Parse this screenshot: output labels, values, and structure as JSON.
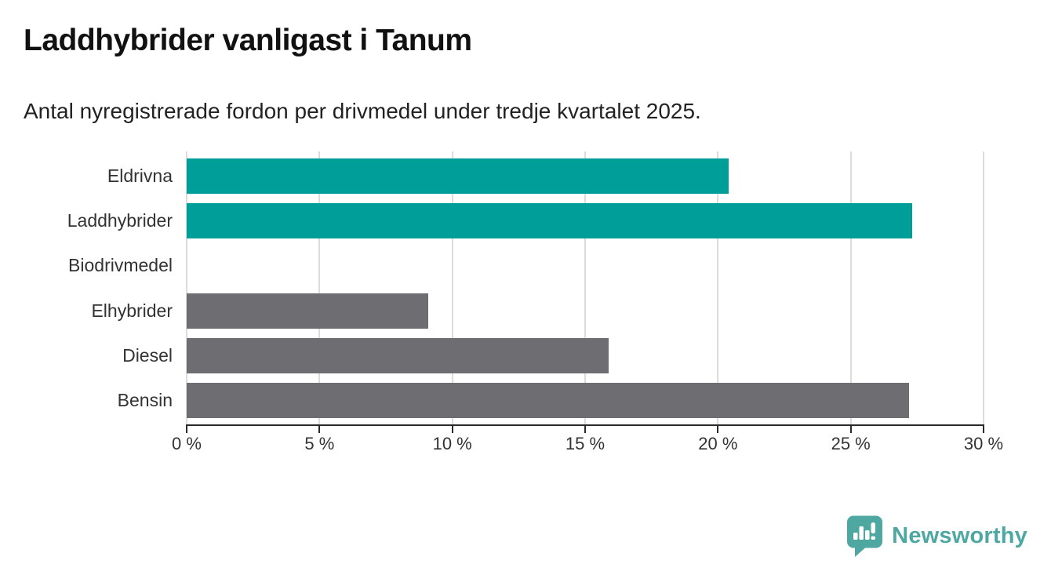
{
  "header": {
    "title": "Laddhybrider vanligast i Tanum",
    "subtitle": "Antal nyregistrerade fordon per drivmedel under tredje kvartalet 2025."
  },
  "chart_data": {
    "type": "bar",
    "orientation": "horizontal",
    "title": "Laddhybrider vanligast i Tanum",
    "subtitle": "Antal nyregistrerade fordon per drivmedel under tredje kvartalet 2025.",
    "categories": [
      "Eldrivna",
      "Laddhybrider",
      "Biodrivmedel",
      "Elhybrider",
      "Diesel",
      "Bensin"
    ],
    "values": [
      20.4,
      27.3,
      0,
      9.1,
      15.9,
      27.2
    ],
    "unit": "%",
    "xlim": [
      0,
      30
    ],
    "x_ticks": [
      0,
      5,
      10,
      15,
      20,
      25,
      30
    ],
    "x_tick_labels": [
      "0 %",
      "5 %",
      "10 %",
      "15 %",
      "20 %",
      "25 %",
      "30 %"
    ],
    "highlighted_categories": [
      "Eldrivna",
      "Laddhybrider"
    ],
    "highlight_color": "#009E99",
    "base_color": "#6D6D72",
    "gridline_color": "#dcdcdc",
    "axis_color": "#2b2b2b",
    "grid": true,
    "legend": "none"
  },
  "footer": {
    "brand": "Newsworthy",
    "brand_color": "#4EA8A1",
    "logo_icon": "bar-chart-speech-bubble"
  }
}
